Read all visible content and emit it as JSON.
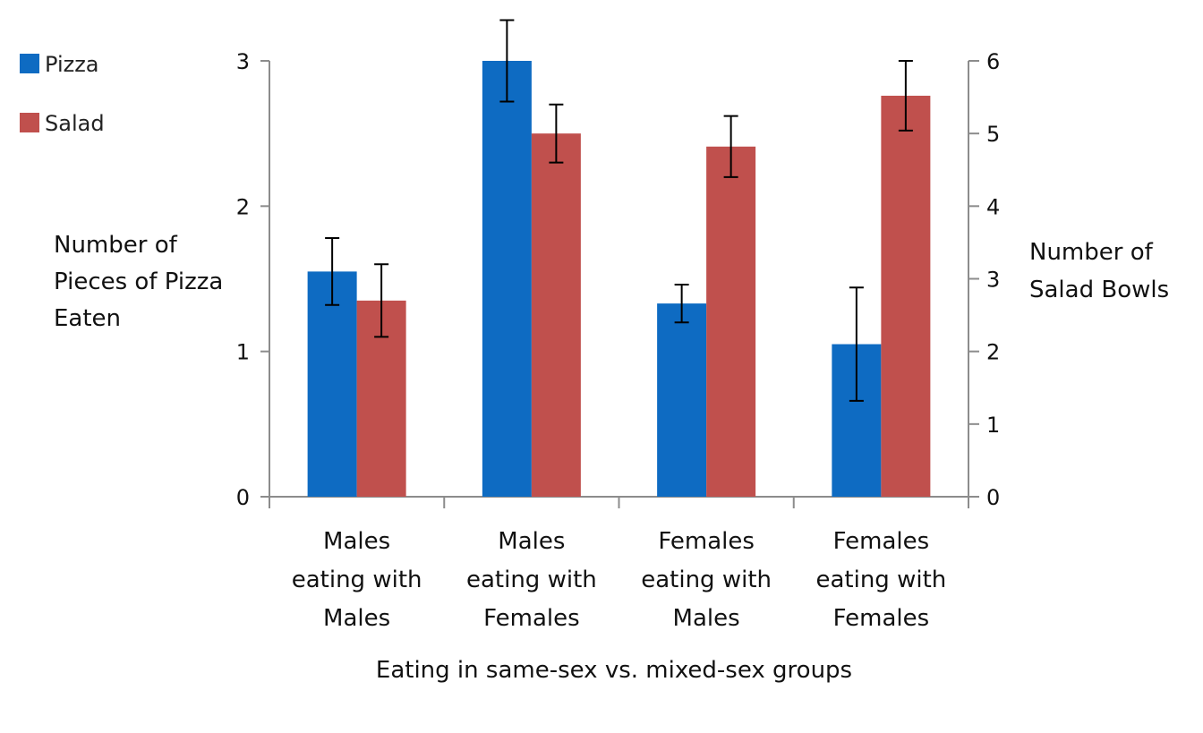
{
  "chart_data": {
    "type": "bar",
    "title": "",
    "categories": [
      [
        "Males",
        "eating with",
        "Males"
      ],
      [
        "Males",
        "eating with",
        "Females"
      ],
      [
        "Females",
        "eating with",
        "Males"
      ],
      [
        "Females",
        "eating with",
        "Females"
      ]
    ],
    "series": [
      {
        "name": "Pizza",
        "axis": "left",
        "color": "#0E6BC2",
        "values": [
          1.55,
          3.0,
          1.33,
          1.05
        ],
        "error": [
          0.23,
          0.28,
          0.13,
          0.39
        ]
      },
      {
        "name": "Salad",
        "axis": "right",
        "color": "#C0504D",
        "values": [
          2.7,
          5.0,
          4.82,
          5.52
        ],
        "error": [
          0.5,
          0.4,
          0.42,
          0.48
        ]
      }
    ],
    "xlabel": "Eating in same-sex vs. mixed-sex groups",
    "ylabel_left": [
      "Number of",
      "Pieces of Pizza",
      "Eaten"
    ],
    "ylabel_right": [
      "Number of",
      "Salad Bowls"
    ],
    "ylim_left": [
      0,
      3
    ],
    "yticks_left": [
      "0",
      "1",
      "2",
      "3"
    ],
    "ylim_right": [
      0,
      6
    ],
    "yticks_right": [
      "0",
      "1",
      "2",
      "3",
      "4",
      "5",
      "6"
    ],
    "grid": false,
    "legend_position": "top-left"
  }
}
